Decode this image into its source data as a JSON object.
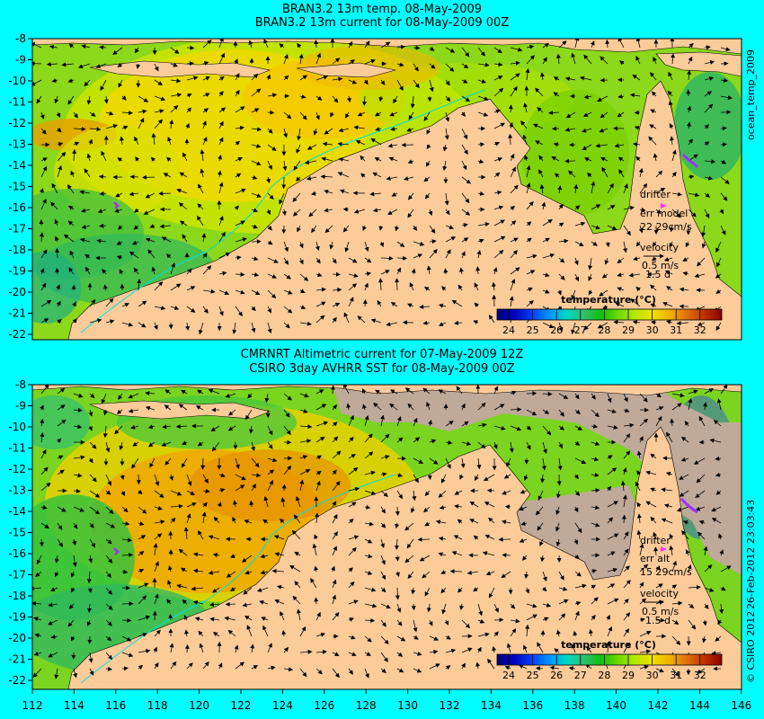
{
  "colors": {
    "background": "#00FFFF",
    "land": "#FCCB9A",
    "no_data": "#BFA999",
    "drifter": "#FF33FF",
    "colormap": [
      "#00007A",
      "#0000C0",
      "#0040F0",
      "#0090FF",
      "#00D8C8",
      "#30C070",
      "#10C010",
      "#70D800",
      "#B8E800",
      "#F0E000",
      "#F0B000",
      "#E07010",
      "#C03000",
      "#8C0000"
    ]
  },
  "top_panel": {
    "title_line1": "BRAN3.2 13m temp. 08-May-2009",
    "title_line2": "BRAN3.2 13m current for 08-May-2009 00Z",
    "side_label": "ocean_temp_2009",
    "legend": {
      "drifter": "drifter",
      "err": "err model",
      "err_value": "22 29cm/s",
      "velocity": "velocity",
      "scale": "0.5 m/s",
      "duration": "1.5 d"
    }
  },
  "bottom_panel": {
    "title_line1": "CMRNRT Altimetric current for 07-May-2009 12Z",
    "title_line2": "CSIRO 3day AVHRR SST for 08-May-2009 00Z",
    "side_label": "26-Feb-2012 23:03:43",
    "copyright": "© CSIRO 2012",
    "legend": {
      "drifter": "drifter",
      "err": "err alt",
      "err_value": "15 29cm/s",
      "velocity": "velocity",
      "scale": "0.5 m/s",
      "duration": "1.5 d"
    }
  },
  "colorbar": {
    "title": "temperature (°C)",
    "ticks": [
      "24",
      "25",
      "26",
      "27",
      "28",
      "29",
      "30",
      "31",
      "32"
    ]
  },
  "axes": {
    "lat_ticks": [
      "-8",
      "-9",
      "-10",
      "-11",
      "-12",
      "-13",
      "-14",
      "-15",
      "-16",
      "-17",
      "-18",
      "-19",
      "-20",
      "-21",
      "-22"
    ],
    "lon_ticks": [
      "112",
      "114",
      "116",
      "118",
      "120",
      "122",
      "124",
      "126",
      "128",
      "130",
      "132",
      "134",
      "136",
      "138",
      "140",
      "142",
      "144",
      "146"
    ]
  }
}
